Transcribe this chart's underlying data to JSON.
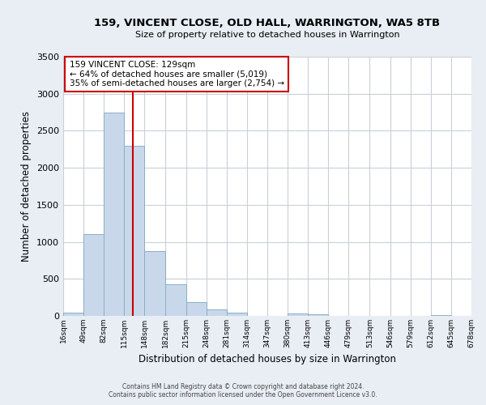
{
  "title_line1": "159, VINCENT CLOSE, OLD HALL, WARRINGTON, WA5 8TB",
  "title_line2": "Size of property relative to detached houses in Warrington",
  "xlabel": "Distribution of detached houses by size in Warrington",
  "ylabel": "Number of detached properties",
  "bar_color": "#c8d8ea",
  "bar_edge_color": "#8aaec8",
  "bin_edges": [
    16,
    49,
    82,
    115,
    148,
    182,
    215,
    248,
    281,
    314,
    347,
    380,
    413,
    446,
    479,
    513,
    546,
    579,
    612,
    645,
    678
  ],
  "bar_heights": [
    40,
    1110,
    2740,
    2300,
    880,
    430,
    190,
    90,
    40,
    0,
    0,
    35,
    20,
    0,
    0,
    0,
    0,
    0,
    10,
    0
  ],
  "tick_labels": [
    "16sqm",
    "49sqm",
    "82sqm",
    "115sqm",
    "148sqm",
    "182sqm",
    "215sqm",
    "248sqm",
    "281sqm",
    "314sqm",
    "347sqm",
    "380sqm",
    "413sqm",
    "446sqm",
    "479sqm",
    "513sqm",
    "546sqm",
    "579sqm",
    "612sqm",
    "645sqm",
    "678sqm"
  ],
  "ylim": [
    0,
    3500
  ],
  "yticks": [
    0,
    500,
    1000,
    1500,
    2000,
    2500,
    3000,
    3500
  ],
  "property_line_x": 129,
  "vline_color": "#cc0000",
  "annotation_title": "159 VINCENT CLOSE: 129sqm",
  "annotation_line1": "← 64% of detached houses are smaller (5,019)",
  "annotation_line2": "35% of semi-detached houses are larger (2,754) →",
  "annotation_box_color": "#ffffff",
  "annotation_box_edge_color": "#cc0000",
  "footer_line1": "Contains HM Land Registry data © Crown copyright and database right 2024.",
  "footer_line2": "Contains public sector information licensed under the Open Government Licence v3.0.",
  "background_color": "#e8eef4",
  "plot_background_color": "#ffffff",
  "grid_color": "#c8d0d8"
}
